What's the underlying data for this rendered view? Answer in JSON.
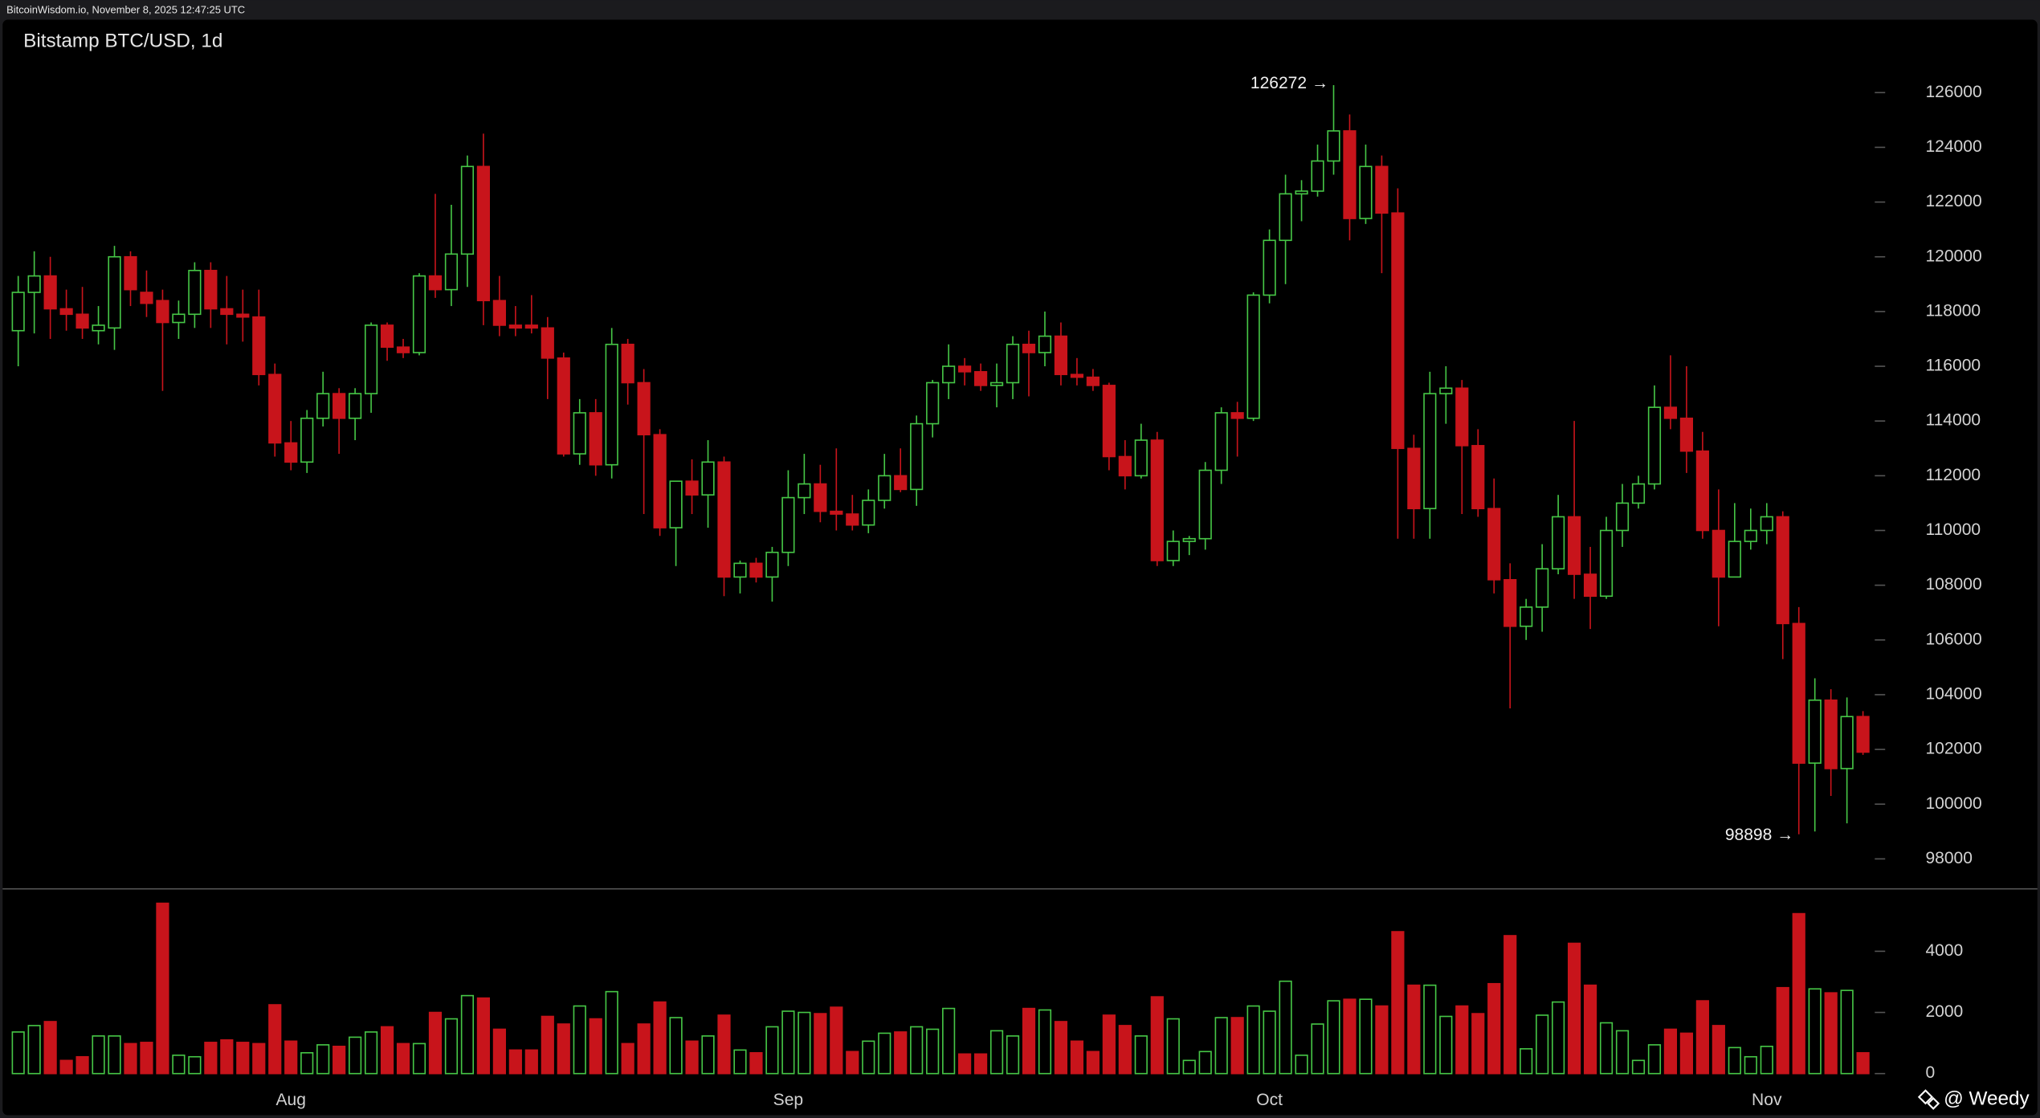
{
  "header": "BitcoinWisdom.io, November 8, 2025 12:47:25 UTC",
  "watermark": "@ Weedy",
  "chart_data": [
    {
      "type": "candlestick",
      "title": "Bitstamp BTC/USD, 1d",
      "up_color": "#46c646",
      "down_color": "#c8141b",
      "categories": [
        null,
        null,
        null,
        null,
        null,
        null,
        null,
        null,
        null,
        null,
        null,
        null,
        null,
        null,
        null,
        null,
        null,
        "Aug",
        null,
        null,
        null,
        null,
        null,
        null,
        null,
        null,
        null,
        null,
        null,
        null,
        null,
        null,
        null,
        null,
        null,
        null,
        null,
        null,
        null,
        null,
        null,
        null,
        null,
        null,
        null,
        null,
        null,
        null,
        "Sep",
        null,
        null,
        null,
        null,
        null,
        null,
        null,
        null,
        null,
        null,
        null,
        null,
        null,
        null,
        null,
        null,
        null,
        null,
        null,
        null,
        null,
        null,
        null,
        null,
        null,
        null,
        null,
        null,
        null,
        "Oct",
        null,
        null,
        null,
        null,
        null,
        null,
        null,
        null,
        null,
        null,
        null,
        null,
        null,
        null,
        null,
        null,
        null,
        null,
        null,
        null,
        null,
        null,
        null,
        null,
        null,
        null,
        null,
        null,
        null,
        null,
        "Nov",
        null,
        null,
        null,
        null,
        null,
        null
      ],
      "open": [
        117300,
        118700,
        119300,
        118100,
        117900,
        117300,
        117400,
        120000,
        118700,
        118400,
        117600,
        117900,
        119500,
        118100,
        117900,
        117800,
        115700,
        113200,
        112500,
        114100,
        115000,
        114100,
        115000,
        117500,
        116700,
        116500,
        119300,
        118800,
        120100,
        123300,
        118400,
        117500,
        117500,
        117400,
        116300,
        112800,
        114300,
        112400,
        116800,
        115400,
        113500,
        110100,
        111800,
        111300,
        112500,
        108300,
        108800,
        108300,
        109200,
        111200,
        111700,
        110700,
        110600,
        110200,
        111100,
        112000,
        111500,
        113900,
        115400,
        116000,
        115800,
        115300,
        115400,
        116800,
        116500,
        117100,
        115700,
        115600,
        115300,
        112700,
        112000,
        113300,
        108900,
        109600,
        109700,
        112200,
        114300,
        114100,
        118600,
        120600,
        122300,
        122400,
        123500,
        124600,
        121400,
        123300,
        121600,
        113000,
        110800,
        115000,
        115200,
        113100,
        110800,
        108200,
        106500,
        107200,
        108600,
        110500,
        108400,
        107600,
        110000,
        111000,
        111700,
        114500,
        114100,
        112900,
        110000,
        108300,
        109600,
        110000,
        110500,
        106600,
        101500,
        103800,
        101300,
        103200
      ],
      "high": [
        119300,
        120200,
        120000,
        118800,
        118900,
        118200,
        120400,
        120200,
        119500,
        118800,
        118400,
        119800,
        119800,
        119300,
        118800,
        118800,
        116100,
        114000,
        114400,
        115800,
        115200,
        115200,
        117600,
        117600,
        117000,
        119400,
        122300,
        121900,
        123700,
        124500,
        119300,
        118200,
        118600,
        117800,
        116500,
        114800,
        114800,
        117400,
        117000,
        115900,
        113700,
        111800,
        112600,
        113300,
        112700,
        108900,
        109000,
        109400,
        112200,
        112800,
        112400,
        113000,
        111300,
        111500,
        112800,
        113000,
        114200,
        115500,
        116800,
        116300,
        116100,
        116100,
        117100,
        117300,
        118000,
        117600,
        116300,
        115900,
        115400,
        113300,
        113900,
        113600,
        110000,
        109800,
        112500,
        114500,
        114700,
        118700,
        121000,
        123000,
        122800,
        124100,
        126272,
        125200,
        124100,
        123700,
        122500,
        113500,
        115800,
        116000,
        115500,
        113700,
        111900,
        108800,
        107500,
        109500,
        111300,
        114000,
        109400,
        110500,
        111700,
        112000,
        115300,
        116400,
        116000,
        113600,
        111500,
        111000,
        110800,
        111000,
        110700,
        107200,
        104600,
        104200,
        103900,
        103400
      ],
      "low": [
        116000,
        117200,
        117000,
        117300,
        117000,
        116800,
        116600,
        118200,
        117800,
        115100,
        117000,
        117400,
        117400,
        116800,
        116900,
        115300,
        112700,
        112200,
        112100,
        113800,
        112800,
        113300,
        114300,
        116200,
        116300,
        116400,
        118500,
        118200,
        118900,
        117500,
        117100,
        117100,
        117200,
        114800,
        112700,
        112400,
        112000,
        111900,
        114600,
        110600,
        109800,
        108700,
        110600,
        110100,
        107600,
        107700,
        108100,
        107400,
        108700,
        110600,
        110300,
        110000,
        110000,
        109900,
        110800,
        111400,
        110900,
        113400,
        114800,
        115300,
        115100,
        114500,
        114800,
        114900,
        116000,
        115300,
        115300,
        115100,
        112200,
        111500,
        111900,
        108700,
        108700,
        109100,
        109300,
        111700,
        112700,
        114000,
        118300,
        119000,
        121300,
        122200,
        123000,
        120600,
        121200,
        119400,
        109700,
        109700,
        109700,
        113900,
        110600,
        110500,
        107700,
        103500,
        106000,
        106300,
        108400,
        107500,
        106400,
        107500,
        109400,
        110800,
        111500,
        113700,
        112100,
        109700,
        106500,
        108300,
        109300,
        109500,
        105300,
        98898,
        99000,
        100300,
        99300,
        101800
      ],
      "close": [
        118700,
        119300,
        118100,
        117900,
        117400,
        117500,
        120000,
        118800,
        118300,
        117600,
        117900,
        119500,
        118100,
        117900,
        117800,
        115700,
        113200,
        112500,
        114100,
        115000,
        114100,
        115000,
        117500,
        116700,
        116500,
        119300,
        118800,
        120100,
        123300,
        118400,
        117500,
        117400,
        117400,
        116300,
        112800,
        114300,
        112400,
        116800,
        115400,
        113500,
        110100,
        111800,
        111300,
        112500,
        108300,
        108800,
        108300,
        109200,
        111200,
        111700,
        110700,
        110600,
        110200,
        111100,
        112000,
        111500,
        113900,
        115400,
        116000,
        115800,
        115300,
        115400,
        116800,
        116500,
        117100,
        115700,
        115600,
        115300,
        112700,
        112000,
        113300,
        108900,
        109600,
        109700,
        112200,
        114300,
        114100,
        118600,
        120600,
        122300,
        122400,
        123500,
        124600,
        121400,
        123300,
        121600,
        113000,
        110800,
        115000,
        115200,
        113100,
        110800,
        108200,
        106500,
        107200,
        108600,
        110500,
        108400,
        107600,
        110000,
        111000,
        111700,
        114500,
        114100,
        112900,
        110000,
        108300,
        109600,
        110000,
        110500,
        106600,
        101500,
        103800,
        101300,
        103200,
        101900
      ],
      "ylim": [
        96954,
        128520
      ],
      "yticks": [
        98000,
        100000,
        102000,
        104000,
        106000,
        108000,
        110000,
        112000,
        114000,
        116000,
        118000,
        120000,
        122000,
        124000,
        126000
      ],
      "annotations": [
        {
          "value": 126272,
          "label": "126272 →"
        },
        {
          "value": 98898,
          "label": "98898 →"
        }
      ]
    },
    {
      "type": "bar",
      "values": [
        1360,
        1570,
        1700,
        430,
        550,
        1230,
        1230,
        980,
        1020,
        5570,
        600,
        550,
        1020,
        1100,
        1020,
        980,
        2250,
        1060,
        680,
        940,
        890,
        1190,
        1360,
        1530,
        980,
        980,
        2000,
        1790,
        2550,
        2470,
        1450,
        770,
        770,
        1870,
        1620,
        2210,
        1790,
        2680,
        980,
        1620,
        2340,
        1830,
        1060,
        1230,
        1910,
        770,
        680,
        1530,
        2040,
        2000,
        1960,
        2170,
        720,
        1060,
        1320,
        1360,
        1530,
        1450,
        2130,
        640,
        640,
        1400,
        1230,
        2130,
        2080,
        1700,
        1060,
        720,
        1910,
        1570,
        1230,
        2510,
        1790,
        430,
        720,
        1830,
        1830,
        2210,
        2040,
        3020,
        600,
        1620,
        2380,
        2430,
        2430,
        2210,
        4640,
        2890,
        2890,
        1870,
        2210,
        1960,
        2940,
        4510,
        810,
        1910,
        2340,
        4260,
        2890,
        1660,
        1400,
        430,
        940,
        1450,
        1320,
        2380,
        1570,
        850,
        550,
        890,
        2810,
        5230,
        2770,
        2640,
        2720,
        680
      ],
      "ylim": [
        -425,
        6000
      ],
      "yticks": [
        0,
        2000,
        4000
      ]
    }
  ]
}
